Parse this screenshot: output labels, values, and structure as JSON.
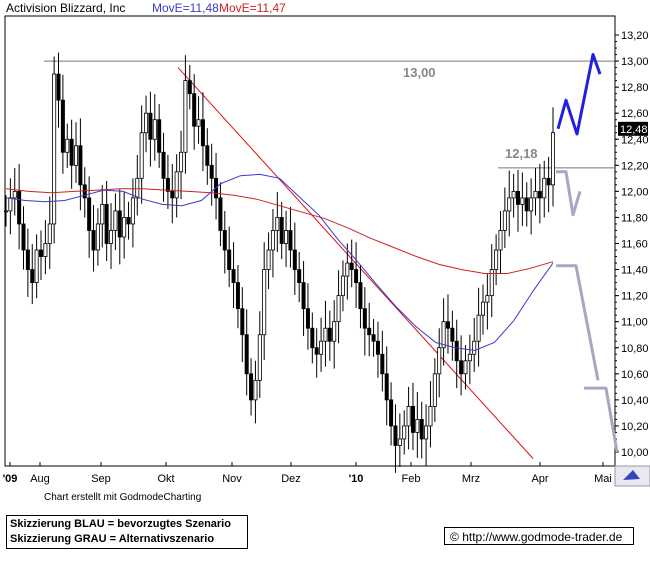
{
  "header": {
    "company": "Activision Blizzard, Inc",
    "ma_fast_label": "MovE=11,48",
    "ma_slow_label": "MovE=11,47",
    "ma_fast_color": "#3a3acc",
    "ma_slow_color": "#cc2222"
  },
  "credit": "Chart erstellt mit GodmodeCharting",
  "legend": {
    "line1": "Skizzierung BLAU = bevorzugtes Szenario",
    "line2": "Skizzierung GRAU = Alternativszenario"
  },
  "url_box": {
    "symbol": "©",
    "text": "http://www.godmode-trader.de"
  },
  "chart_data": {
    "type": "candlestick",
    "title": "Activision Blizzard, Inc",
    "xlabel": "",
    "ylabel": "",
    "ylim": [
      9.95,
      13.25
    ],
    "y_ticks": [
      "13,20",
      "13,00",
      "12,80",
      "12,60",
      "12,40",
      "12,20",
      "12,00",
      "11,80",
      "11,60",
      "11,40",
      "11,20",
      "11,00",
      "10,80",
      "10,60",
      "10,40",
      "10,20",
      "10,00"
    ],
    "x_ticks": [
      "'09",
      "Aug",
      "Sep",
      "Okt",
      "Nov",
      "Dez",
      "'10",
      "Feb",
      "Mrz",
      "Apr",
      "Mai"
    ],
    "last_price_label": "12,48",
    "price_series": [
      11.85,
      11.95,
      12.0,
      11.75,
      11.55,
      11.4,
      11.3,
      11.55,
      11.5,
      11.6,
      11.75,
      12.9,
      12.7,
      12.3,
      12.4,
      12.2,
      12.35,
      12.05,
      11.95,
      11.7,
      11.55,
      11.75,
      11.9,
      11.6,
      11.7,
      11.85,
      11.65,
      11.8,
      11.75,
      11.95,
      12.1,
      12.45,
      12.6,
      12.4,
      12.55,
      12.3,
      12.1,
      12.0,
      11.95,
      12.15,
      12.3,
      12.85,
      12.75,
      12.5,
      12.55,
      12.35,
      12.2,
      12.1,
      11.95,
      11.7,
      11.55,
      11.4,
      11.3,
      11.1,
      10.9,
      10.6,
      10.4,
      10.55,
      10.9,
      11.4,
      11.55,
      11.7,
      11.8,
      11.6,
      11.7,
      11.55,
      11.4,
      11.3,
      11.1,
      10.95,
      10.8,
      10.75,
      10.85,
      10.95,
      10.85,
      11.0,
      11.2,
      11.35,
      11.45,
      11.4,
      11.3,
      11.1,
      10.95,
      10.9,
      10.85,
      10.75,
      10.6,
      10.4,
      10.2,
      10.05,
      10.1,
      10.2,
      10.35,
      10.15,
      10.25,
      10.1,
      10.2,
      10.35,
      10.6,
      10.8,
      11.0,
      10.95,
      10.85,
      10.7,
      10.6,
      10.7,
      10.75,
      10.85,
      11.05,
      11.15,
      11.2,
      11.4,
      11.55,
      11.7,
      11.85,
      11.95,
      12.0,
      11.9,
      11.95,
      11.85,
      11.95,
      12.0,
      11.95,
      12.1,
      12.05,
      12.45
    ],
    "ma_fast": [
      11.95,
      11.93,
      11.92,
      11.93,
      11.97,
      12.01,
      12.0,
      11.94,
      11.9,
      11.89,
      11.93,
      12.06,
      12.12,
      12.13,
      12.1,
      11.96,
      11.82,
      11.63,
      11.46,
      11.28,
      11.11,
      10.96,
      10.84,
      10.8,
      10.78,
      10.84,
      11.01,
      11.24,
      11.45
    ],
    "ma_slow": [
      12.02,
      12.0,
      11.99,
      12.0,
      12.01,
      12.02,
      12.02,
      12.01,
      12.0,
      11.99,
      11.97,
      11.94,
      11.89,
      11.84,
      11.79,
      11.72,
      11.64,
      11.57,
      11.5,
      11.44,
      11.4,
      11.37,
      11.37,
      11.41,
      11.46
    ],
    "annotations": [
      {
        "label": "13,00",
        "kind": "horizontal-resistance",
        "value": 13.0
      },
      {
        "label": "12,18",
        "kind": "horizontal-resistance",
        "value": 12.18
      },
      {
        "label": "",
        "kind": "red-downtrend-line",
        "from_value": 12.95,
        "to_value": 9.95
      }
    ],
    "scenario_blue": [
      12.48,
      12.7,
      12.44,
      13.05,
      12.9
    ],
    "scenario_grey_a": [
      12.15,
      12.15,
      11.82,
      12.0
    ],
    "scenario_grey_b": [
      11.43,
      11.43,
      10.55
    ],
    "scenario_grey_c": [
      10.49,
      10.49,
      10.0
    ],
    "colors": {
      "blue_scenario": "#2222dd",
      "grey_scenario": "#a7a7c4",
      "trendline": "#dd1111"
    }
  }
}
